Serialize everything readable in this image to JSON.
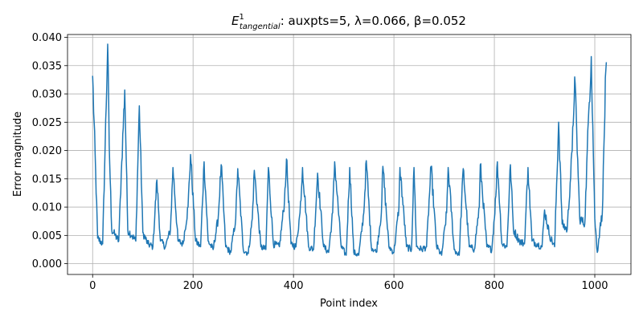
{
  "chart_data": {
    "type": "line",
    "title_main": "E",
    "title_sup": "1",
    "title_sub": "tangential",
    "title_rest": ": auxpts=5, λ=0.066, β=0.052",
    "xlabel": "Point index",
    "ylabel": "Error magnitude",
    "xlim": [
      -50,
      1072
    ],
    "ylim": [
      -0.0019,
      0.0405
    ],
    "grid": true,
    "x_ticks": [
      0,
      200,
      400,
      600,
      800,
      1000
    ],
    "x_tick_labels": [
      "0",
      "200",
      "400",
      "600",
      "800",
      "1000"
    ],
    "y_ticks": [
      0.0,
      0.005,
      0.01,
      0.015,
      0.02,
      0.025,
      0.03,
      0.035,
      0.04
    ],
    "y_tick_labels": [
      "0.000",
      "0.005",
      "0.010",
      "0.015",
      "0.020",
      "0.025",
      "0.030",
      "0.035",
      "0.040"
    ],
    "color": "#1f77b4",
    "n_points": 1024,
    "x": [
      0,
      10,
      20,
      25,
      30,
      33,
      38,
      45,
      52,
      58,
      64,
      70,
      78,
      86,
      93,
      100,
      110,
      120,
      128,
      135,
      145,
      155,
      160,
      170,
      180,
      190,
      195,
      205,
      215,
      222,
      230,
      240,
      250,
      256,
      265,
      275,
      285,
      289,
      300,
      310,
      318,
      322,
      335,
      345,
      350,
      360,
      372,
      382,
      386,
      395,
      405,
      413,
      418,
      430,
      440,
      448,
      460,
      470,
      478,
      482,
      495,
      505,
      512,
      520,
      530,
      540,
      545,
      555,
      565,
      575,
      578,
      590,
      600,
      610,
      612,
      625,
      635,
      640,
      645,
      655,
      665,
      674,
      685,
      695,
      705,
      708,
      720,
      730,
      738,
      750,
      760,
      770,
      772,
      785,
      795,
      803,
      806,
      815,
      825,
      832,
      838,
      850,
      860,
      867,
      875,
      885,
      895,
      900,
      910,
      920,
      928,
      935,
      945,
      955,
      960,
      970,
      980,
      988,
      993,
      1000,
      1005,
      1010,
      1015,
      1022
    ],
    "y": [
      0.0332,
      0.0045,
      0.0035,
      0.021,
      0.0388,
      0.021,
      0.006,
      0.005,
      0.004,
      0.018,
      0.0307,
      0.006,
      0.005,
      0.004,
      0.0279,
      0.0055,
      0.0035,
      0.003,
      0.0148,
      0.004,
      0.003,
      0.006,
      0.017,
      0.004,
      0.0035,
      0.01,
      0.0193,
      0.004,
      0.003,
      0.018,
      0.004,
      0.0025,
      0.008,
      0.0175,
      0.003,
      0.002,
      0.008,
      0.0168,
      0.0025,
      0.0018,
      0.008,
      0.0165,
      0.003,
      0.0025,
      0.017,
      0.0035,
      0.003,
      0.011,
      0.0185,
      0.0035,
      0.003,
      0.009,
      0.017,
      0.003,
      0.0025,
      0.016,
      0.003,
      0.002,
      0.009,
      0.018,
      0.003,
      0.0015,
      0.017,
      0.002,
      0.0015,
      0.009,
      0.0182,
      0.003,
      0.002,
      0.009,
      0.0172,
      0.003,
      0.002,
      0.01,
      0.017,
      0.003,
      0.0025,
      0.017,
      0.003,
      0.0025,
      0.003,
      0.0172,
      0.003,
      0.0015,
      0.009,
      0.017,
      0.0025,
      0.0015,
      0.0168,
      0.003,
      0.0025,
      0.01,
      0.0175,
      0.003,
      0.0025,
      0.012,
      0.018,
      0.0035,
      0.003,
      0.0175,
      0.006,
      0.004,
      0.0035,
      0.017,
      0.004,
      0.0035,
      0.003,
      0.0095,
      0.005,
      0.003,
      0.025,
      0.007,
      0.006,
      0.02,
      0.033,
      0.008,
      0.007,
      0.027,
      0.0366,
      0.008,
      0.002,
      0.006,
      0.009,
      0.0342
    ]
  }
}
